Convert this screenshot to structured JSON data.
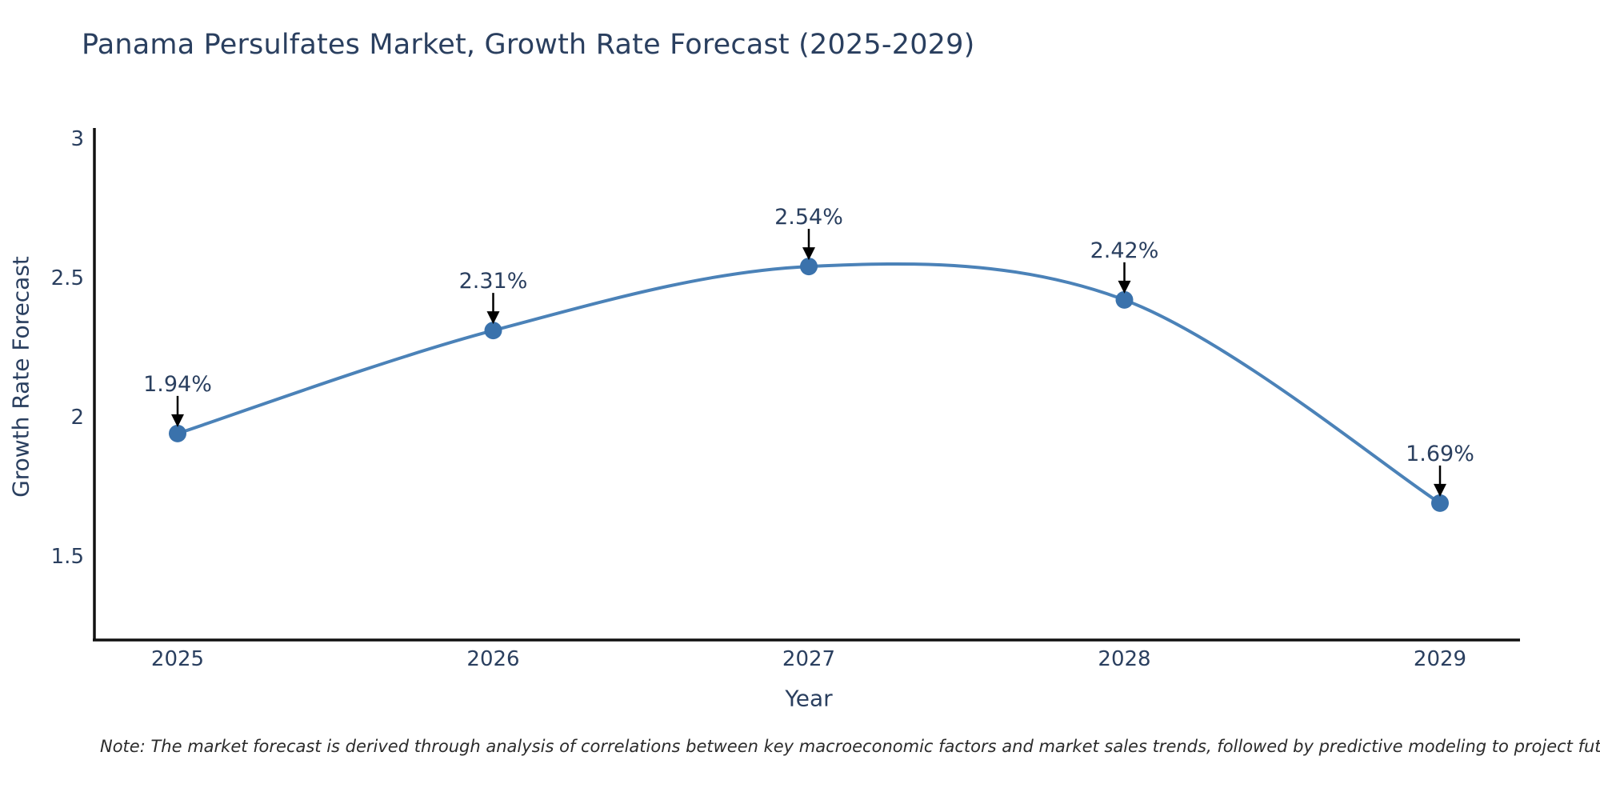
{
  "title": "Panama Persulfates Market, Growth Rate Forecast (2025-2029)",
  "note": "Note: The market forecast is derived through analysis of correlations between key macroeconomic factors and market sales trends, followed by predictive modeling to project future sales",
  "colors": {
    "series_line": "#4b82b8",
    "marker_fill": "#3a72ac",
    "annotation_arrow": "#000000",
    "axis_line": "#111111",
    "text": "#2a3f5f"
  },
  "chart_data": {
    "type": "line",
    "title": "Panama Persulfates Market, Growth Rate Forecast (2025-2029)",
    "xlabel": "Year",
    "ylabel": "Growth Rate Forecast",
    "x": [
      2025,
      2026,
      2027,
      2028,
      2029
    ],
    "values": [
      1.94,
      2.31,
      2.54,
      2.42,
      1.69
    ],
    "point_labels": [
      "1.94%",
      "2.31%",
      "2.54%",
      "2.42%",
      "1.69%"
    ],
    "x_tick_labels": [
      "2025",
      "2026",
      "2027",
      "2028",
      "2029"
    ],
    "y_ticks": [
      3,
      2.5,
      2,
      1.5
    ],
    "y_tick_labels": [
      "3",
      "2.5",
      "2",
      "1.5"
    ],
    "ylim": [
      1.2,
      3.12
    ],
    "line_shape": "spline",
    "grid": false,
    "legend": "none"
  }
}
